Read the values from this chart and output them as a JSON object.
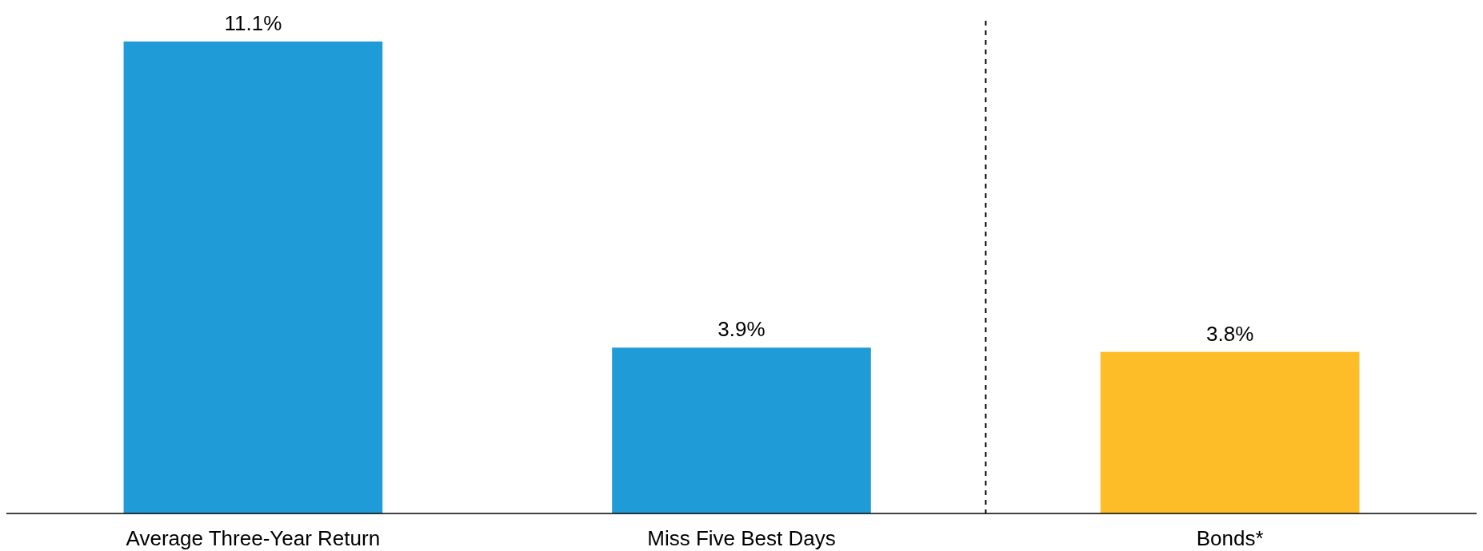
{
  "chart_data": {
    "type": "bar",
    "categories": [
      "Average Three-Year Return",
      "Miss Five Best Days",
      "Bonds*"
    ],
    "values": [
      11.1,
      3.9,
      3.8
    ],
    "colors": [
      "#1f9bd7",
      "#1f9bd7",
      "#fdbd28"
    ],
    "value_labels": [
      "11.1%",
      "3.9%",
      "3.8%"
    ]
  }
}
